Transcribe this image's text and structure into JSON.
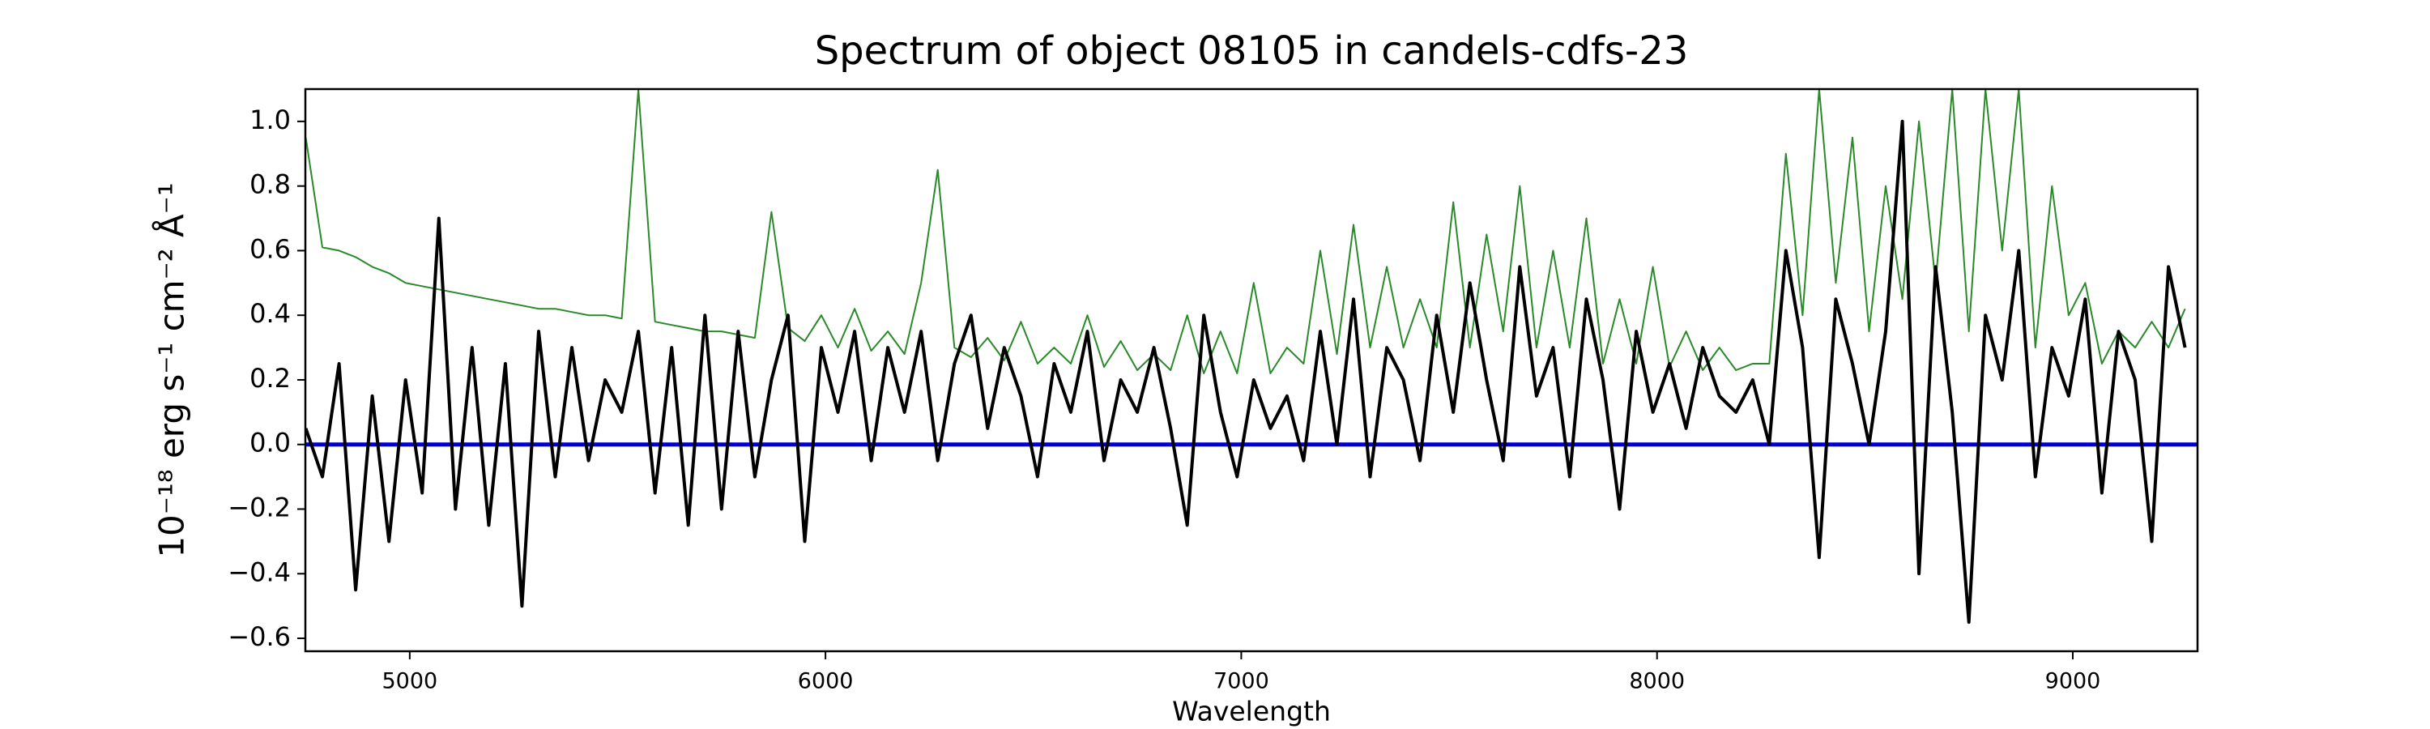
{
  "chart_data": {
    "type": "line",
    "title": "Spectrum of object 08105 in candels-cdfs-23",
    "xlabel": "Wavelength",
    "ylabel": "10⁻¹⁸ erg s⁻¹ cm⁻² Å⁻¹",
    "x": [
      4750,
      4790,
      4830,
      4870,
      4910,
      4950,
      4990,
      5030,
      5070,
      5110,
      5150,
      5190,
      5230,
      5270,
      5310,
      5350,
      5390,
      5430,
      5470,
      5510,
      5550,
      5590,
      5630,
      5670,
      5710,
      5750,
      5790,
      5830,
      5870,
      5910,
      5950,
      5990,
      6030,
      6070,
      6110,
      6150,
      6190,
      6230,
      6270,
      6310,
      6350,
      6390,
      6430,
      6470,
      6510,
      6550,
      6590,
      6630,
      6670,
      6710,
      6750,
      6790,
      6830,
      6870,
      6910,
      6950,
      6990,
      7030,
      7070,
      7110,
      7150,
      7190,
      7230,
      7270,
      7310,
      7350,
      7390,
      7430,
      7470,
      7510,
      7550,
      7590,
      7630,
      7670,
      7710,
      7750,
      7790,
      7830,
      7870,
      7910,
      7950,
      7990,
      8030,
      8070,
      8110,
      8150,
      8190,
      8230,
      8270,
      8310,
      8350,
      8390,
      8430,
      8470,
      8510,
      8550,
      8590,
      8630,
      8670,
      8710,
      8750,
      8790,
      8830,
      8870,
      8910,
      8950,
      8990,
      9030,
      9070,
      9110,
      9150,
      9190,
      9230,
      9270
    ],
    "series": [
      {
        "color": "#2a8a2a",
        "width": 2,
        "values": [
          0.95,
          0.61,
          0.6,
          0.58,
          0.55,
          0.53,
          0.5,
          0.49,
          0.48,
          0.47,
          0.46,
          0.45,
          0.44,
          0.43,
          0.42,
          0.42,
          0.41,
          0.4,
          0.4,
          0.39,
          1.1,
          0.38,
          0.37,
          0.36,
          0.35,
          0.35,
          0.34,
          0.33,
          0.72,
          0.36,
          0.32,
          0.4,
          0.3,
          0.42,
          0.29,
          0.35,
          0.28,
          0.5,
          0.85,
          0.3,
          0.27,
          0.33,
          0.26,
          0.38,
          0.25,
          0.3,
          0.25,
          0.4,
          0.24,
          0.32,
          0.23,
          0.28,
          0.23,
          0.4,
          0.22,
          0.35,
          0.22,
          0.5,
          0.22,
          0.3,
          0.25,
          0.6,
          0.28,
          0.68,
          0.3,
          0.55,
          0.3,
          0.45,
          0.3,
          0.75,
          0.3,
          0.65,
          0.35,
          0.8,
          0.3,
          0.6,
          0.3,
          0.7,
          0.25,
          0.45,
          0.25,
          0.55,
          0.24,
          0.35,
          0.23,
          0.3,
          0.23,
          0.25,
          0.25,
          0.9,
          0.4,
          1.1,
          0.5,
          0.95,
          0.35,
          0.8,
          0.45,
          1.0,
          0.5,
          1.1,
          0.35,
          1.1,
          0.6,
          1.1,
          0.3,
          0.8,
          0.4,
          0.5,
          0.25,
          0.35,
          0.3,
          0.38,
          0.3,
          0.42
        ]
      },
      {
        "color": "#000000",
        "width": 4,
        "values": [
          0.05,
          -0.1,
          0.25,
          -0.45,
          0.15,
          -0.3,
          0.2,
          -0.15,
          0.7,
          -0.2,
          0.3,
          -0.25,
          0.25,
          -0.5,
          0.35,
          -0.1,
          0.3,
          -0.05,
          0.2,
          0.1,
          0.35,
          -0.15,
          0.3,
          -0.25,
          0.4,
          -0.2,
          0.35,
          -0.1,
          0.2,
          0.4,
          -0.3,
          0.3,
          0.1,
          0.35,
          -0.05,
          0.3,
          0.1,
          0.35,
          -0.05,
          0.25,
          0.4,
          0.05,
          0.3,
          0.15,
          -0.1,
          0.25,
          0.1,
          0.35,
          -0.05,
          0.2,
          0.1,
          0.3,
          0.05,
          -0.25,
          0.4,
          0.1,
          -0.1,
          0.2,
          0.05,
          0.15,
          -0.05,
          0.35,
          0.0,
          0.45,
          -0.1,
          0.3,
          0.2,
          -0.05,
          0.4,
          0.1,
          0.5,
          0.2,
          -0.05,
          0.55,
          0.15,
          0.3,
          -0.1,
          0.45,
          0.2,
          -0.2,
          0.35,
          0.1,
          0.25,
          0.05,
          0.3,
          0.15,
          0.1,
          0.2,
          0.0,
          0.6,
          0.3,
          -0.35,
          0.45,
          0.25,
          0.0,
          0.35,
          1.0,
          -0.4,
          0.55,
          0.1,
          -0.55,
          0.4,
          0.2,
          0.6,
          -0.1,
          0.3,
          0.15,
          0.45,
          -0.15,
          0.35,
          0.2,
          -0.3,
          0.55,
          0.3
        ]
      }
    ],
    "hlines": [
      {
        "y": 0,
        "color": "#0000cc"
      }
    ],
    "xlim": [
      4749,
      9300
    ],
    "ylim": [
      -0.64,
      1.1
    ],
    "xticks": [
      5000,
      6000,
      7000,
      8000,
      9000
    ],
    "yticks": [
      {
        "value": -0.6,
        "label": "−0.6"
      },
      {
        "value": -0.4,
        "label": "−0.4"
      },
      {
        "value": -0.2,
        "label": "−0.2"
      },
      {
        "value": 0,
        "label": "0.0"
      },
      0.2,
      0.4,
      0.6,
      0.8,
      {
        "value": 1,
        "label": "1.0"
      }
    ]
  }
}
